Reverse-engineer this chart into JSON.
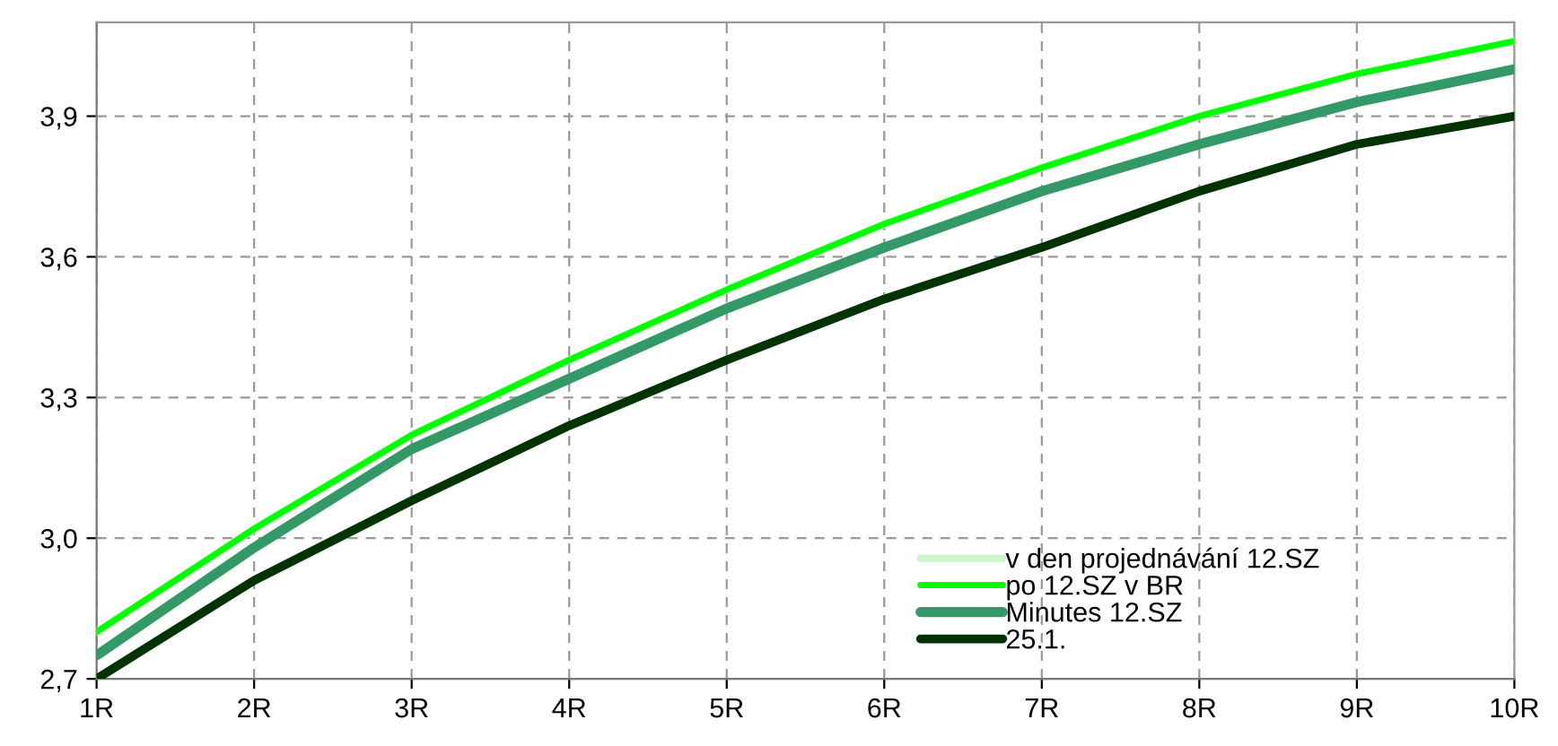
{
  "chart_data": {
    "type": "line",
    "categories": [
      "1R",
      "2R",
      "3R",
      "4R",
      "5R",
      "6R",
      "7R",
      "8R",
      "9R",
      "10R"
    ],
    "series": [
      {
        "name": "v den projednávání 12.SZ",
        "color": "#ccf5cc",
        "values": [
          2.8,
          3.02,
          3.22,
          3.38,
          3.53,
          3.67,
          3.79,
          3.9,
          3.99,
          4.06
        ]
      },
      {
        "name": "po 12.SZ v BR",
        "color": "#00ff00",
        "values": [
          2.8,
          3.02,
          3.22,
          3.38,
          3.53,
          3.67,
          3.79,
          3.9,
          3.99,
          4.06
        ]
      },
      {
        "name": "Minutes 12.SZ",
        "color": "#339966",
        "values": [
          2.75,
          2.98,
          3.19,
          3.34,
          3.49,
          3.62,
          3.74,
          3.84,
          3.93,
          4.0
        ]
      },
      {
        "name": "25.1.",
        "color": "#003300",
        "values": [
          2.7,
          2.91,
          3.08,
          3.24,
          3.38,
          3.51,
          3.62,
          3.74,
          3.84,
          3.9
        ]
      }
    ],
    "ylim": [
      2.7,
      4.1
    ],
    "yticks": [
      {
        "value": 2.7,
        "label": "2,7"
      },
      {
        "value": 3.0,
        "label": "3,0"
      },
      {
        "value": 3.3,
        "label": "3,3"
      },
      {
        "value": 3.6,
        "label": "3,6"
      },
      {
        "value": 3.9,
        "label": "3,9"
      }
    ],
    "grid": true,
    "legend": "bottom right",
    "marker": "none",
    "line_style": "solid"
  }
}
